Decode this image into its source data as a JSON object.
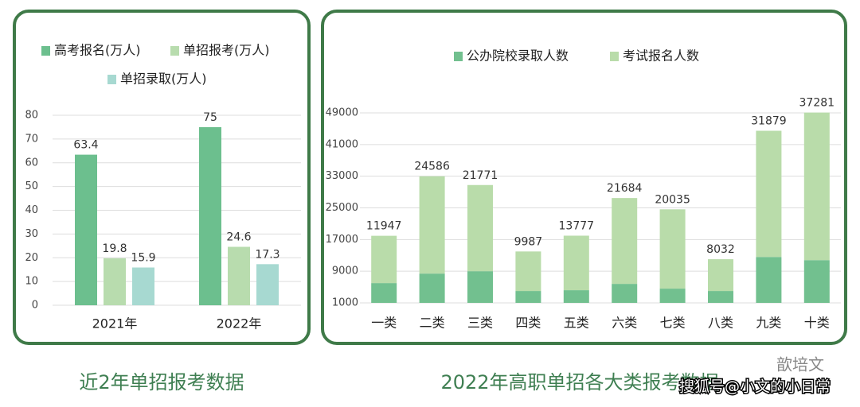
{
  "chart_data": [
    {
      "type": "bar",
      "stacked": false,
      "categories": [
        "2021年",
        "2022年"
      ],
      "series": [
        {
          "name": "高考报名(万人)",
          "color": "#6cbf8e",
          "values": [
            63.4,
            75
          ]
        },
        {
          "name": "单招报考(万人)",
          "color": "#b8dcae",
          "values": [
            19.8,
            24.6
          ]
        },
        {
          "name": "单招录取(万人)",
          "color": "#a7d9d1",
          "values": [
            15.9,
            17.3
          ]
        }
      ],
      "ylim": [
        0,
        80
      ],
      "yticks": [
        0,
        10,
        20,
        30,
        40,
        50,
        60,
        70,
        80
      ],
      "grid": true
    },
    {
      "type": "bar",
      "stacked": true,
      "categories": [
        "一类",
        "二类",
        "三类",
        "四类",
        "五类",
        "六类",
        "七类",
        "八类",
        "九类",
        "十类"
      ],
      "series": [
        {
          "name": "公办院校录取人数",
          "color": "#72c08f",
          "values": [
            5000,
            7400,
            8000,
            3000,
            3200,
            4800,
            3600,
            3000,
            11600,
            10800
          ]
        },
        {
          "name": "考试报名人数",
          "color": "#b9dcaa",
          "values": [
            11947,
            24586,
            21771,
            9987,
            13777,
            21684,
            20035,
            8032,
            31879,
            37281
          ],
          "labels_shown": true
        }
      ],
      "ylim": [
        1000,
        49000
      ],
      "yticks": [
        1000,
        9000,
        17000,
        25000,
        33000,
        41000,
        49000
      ],
      "grid": true
    }
  ],
  "captions": [
    "近2年单招报考数据",
    "2022年高职单招各大类报考数据"
  ],
  "watermark": [
    "歆培文",
    "搜狐号@小文的小日常"
  ]
}
